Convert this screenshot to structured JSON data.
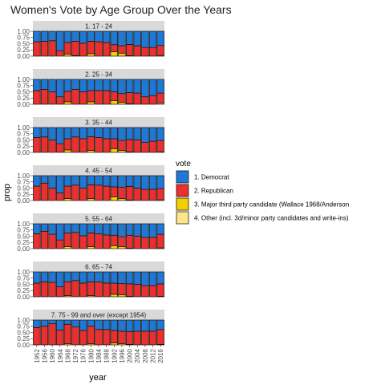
{
  "chart_data": {
    "type": "bar",
    "stacked": true,
    "title": "Women's Vote by Age Group Over the Years",
    "xlabel": "year",
    "ylabel": "prop",
    "ylim": [
      0,
      1
    ],
    "y_ticks": [
      "0.00",
      "0.25",
      "0.50",
      "0.75",
      "1.00"
    ],
    "y_tick_values": [
      0,
      0.25,
      0.5,
      0.75,
      1
    ],
    "categories": [
      "1952",
      "1956",
      "1960",
      "1964",
      "1968",
      "1972",
      "1976",
      "1980",
      "1984",
      "1988",
      "1992",
      "1996",
      "2000",
      "2004",
      "2008",
      "2012",
      "2016"
    ],
    "legend": {
      "title": "vote",
      "position": "right",
      "entries": [
        {
          "label": "1. Democrat",
          "color": "#1f78d4"
        },
        {
          "label": "2. Republican",
          "color": "#e8302e"
        },
        {
          "label": "3. Major third party candidate (Wallace 1968/Anderson",
          "color": "#f5d000"
        },
        {
          "label": "4. Other (incl. 3d/minor party candidates and write-ins)",
          "color": "#fde68a"
        }
      ]
    },
    "facets": [
      {
        "label": "1. 17 - 24",
        "republican": [
          0.58,
          0.6,
          0.62,
          0.22,
          0.47,
          0.58,
          0.52,
          0.5,
          0.58,
          0.55,
          0.28,
          0.3,
          0.45,
          0.42,
          0.35,
          0.35,
          0.4
        ],
        "third": [
          0,
          0,
          0,
          0,
          0.08,
          0,
          0,
          0.1,
          0,
          0,
          0.18,
          0.12,
          0,
          0,
          0,
          0,
          0
        ],
        "other": [
          0,
          0,
          0,
          0,
          0,
          0.02,
          0,
          0,
          0,
          0,
          0,
          0,
          0.02,
          0,
          0,
          0,
          0.03
        ]
      },
      {
        "label": "2. 25 - 34",
        "republican": [
          0.55,
          0.6,
          0.5,
          0.3,
          0.42,
          0.6,
          0.5,
          0.45,
          0.55,
          0.55,
          0.35,
          0.35,
          0.45,
          0.45,
          0.3,
          0.35,
          0.4
        ],
        "third": [
          0,
          0,
          0,
          0,
          0.1,
          0,
          0,
          0.1,
          0,
          0,
          0.15,
          0.08,
          0,
          0,
          0,
          0,
          0
        ],
        "other": [
          0,
          0,
          0,
          0,
          0,
          0,
          0,
          0,
          0,
          0,
          0,
          0,
          0.02,
          0,
          0,
          0,
          0.05
        ]
      },
      {
        "label": "3. 35 - 44",
        "republican": [
          0.6,
          0.62,
          0.5,
          0.35,
          0.45,
          0.62,
          0.55,
          0.55,
          0.6,
          0.55,
          0.4,
          0.4,
          0.5,
          0.5,
          0.4,
          0.45,
          0.45
        ],
        "third": [
          0,
          0,
          0,
          0,
          0.1,
          0,
          0,
          0.08,
          0,
          0,
          0.15,
          0.08,
          0,
          0,
          0,
          0,
          0
        ],
        "other": [
          0,
          0,
          0,
          0,
          0,
          0,
          0,
          0,
          0,
          0,
          0,
          0,
          0.02,
          0,
          0,
          0,
          0.03
        ]
      },
      {
        "label": "4. 45 - 54",
        "republican": [
          0.58,
          0.7,
          0.5,
          0.3,
          0.5,
          0.62,
          0.5,
          0.55,
          0.62,
          0.58,
          0.4,
          0.45,
          0.55,
          0.5,
          0.45,
          0.45,
          0.45
        ],
        "third": [
          0,
          0,
          0,
          0,
          0.08,
          0,
          0,
          0.08,
          0,
          0,
          0.15,
          0.08,
          0,
          0,
          0,
          0,
          0
        ],
        "other": [
          0,
          0,
          0,
          0,
          0,
          0,
          0,
          0,
          0,
          0,
          0,
          0,
          0.02,
          0,
          0,
          0,
          0.03
        ]
      },
      {
        "label": "5. 55 - 64",
        "republican": [
          0.6,
          0.7,
          0.58,
          0.35,
          0.55,
          0.65,
          0.52,
          0.55,
          0.6,
          0.55,
          0.42,
          0.4,
          0.52,
          0.5,
          0.45,
          0.45,
          0.55
        ],
        "third": [
          0,
          0,
          0,
          0,
          0.08,
          0,
          0,
          0.08,
          0,
          0,
          0.12,
          0.08,
          0,
          0,
          0,
          0,
          0
        ],
        "other": [
          0,
          0,
          0,
          0,
          0,
          0,
          0,
          0,
          0,
          0,
          0,
          0,
          0.02,
          0,
          0,
          0,
          0.03
        ]
      },
      {
        "label": "6. 65 - 74",
        "republican": [
          0.55,
          0.6,
          0.58,
          0.4,
          0.55,
          0.65,
          0.55,
          0.55,
          0.6,
          0.55,
          0.45,
          0.45,
          0.5,
          0.5,
          0.45,
          0.45,
          0.5
        ],
        "third": [
          0,
          0,
          0,
          0,
          0.05,
          0,
          0,
          0.05,
          0,
          0,
          0.1,
          0.08,
          0,
          0,
          0,
          0,
          0
        ],
        "other": [
          0,
          0,
          0,
          0,
          0,
          0,
          0,
          0,
          0,
          0,
          0,
          0,
          0.02,
          0,
          0,
          0,
          0.02
        ]
      },
      {
        "label": "7. 75 - 99 and over (except 1954)",
        "republican": [
          0.7,
          0.75,
          0.85,
          0.6,
          0.78,
          0.72,
          0.58,
          0.7,
          0.62,
          0.62,
          0.5,
          0.5,
          0.52,
          0.55,
          0.55,
          0.55,
          0.6
        ],
        "third": [
          0,
          0,
          0,
          0,
          0.05,
          0,
          0,
          0.05,
          0,
          0,
          0.08,
          0.05,
          0,
          0,
          0,
          0,
          0
        ],
        "other": [
          0,
          0,
          0,
          0,
          0,
          0,
          0,
          0,
          0,
          0,
          0,
          0,
          0.02,
          0,
          0,
          0,
          0.02
        ]
      }
    ]
  }
}
